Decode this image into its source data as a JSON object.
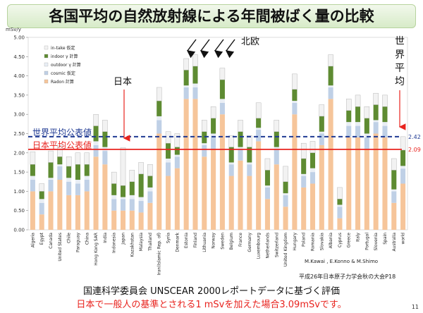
{
  "slide": {
    "title": "各国平均の自然放射線による年間被ばく量の比較",
    "credit": "M.Kawai , E.Konno & M.Shimo",
    "conference": "平成26年日本原子力学会秋の大会P18",
    "footer_line1": "国連科学委員会 UNSCEAR 2000レポートデータに基づく評価",
    "footer_line2": "日本で一般人の基準とされる1 mSvを加えた場合3.09mSvです。",
    "page_number": "11"
  },
  "colors": {
    "radon": "#f6c59a",
    "cosmic": "#bfd0e6",
    "outdoor": "#e9eef5",
    "indoor": "#5e8b32",
    "intake": "#f2f2f2",
    "world_line": "#1f3a93",
    "japan_line": "#e8231e",
    "arrow": "#e8231e"
  },
  "annotations": {
    "japan_label": "日本",
    "world_label": "世界平均",
    "north_europe_label": "北欧",
    "world_line_label": "世界平均公表値",
    "japan_line_label": "日本平均公表値"
  },
  "chart_data": {
    "type": "bar",
    "stacked": true,
    "ylabel": "mSv/y",
    "ylim": [
      0,
      5.0
    ],
    "yticks": [
      "0.00",
      "0.50",
      "1.00",
      "1.50",
      "2.00",
      "2.50",
      "3.00",
      "3.50",
      "4.00",
      "4.50",
      "5.00"
    ],
    "grid": false,
    "legend_position": "top-left",
    "categories": [
      "Algeria",
      "Egypt",
      "Canada",
      "United States",
      "Chile",
      "Paraguay",
      "China",
      "Hong Kong SAR",
      "India",
      "Indonesia",
      "Japan",
      "Kazakhstan",
      "Malaysia",
      "Thailand",
      "Iran(Islamic Rep. of)",
      "Syria",
      "Denmark",
      "Estonia",
      "Finland",
      "Lithuania",
      "Norway",
      "Sweden",
      "Belgium",
      "France",
      "Germany",
      "Luxembourg",
      "Netherlands",
      "Switzerland",
      "United Kingdom",
      "Hungary",
      "Poland",
      "Romania",
      "Slovakia",
      "Albania",
      "Cyprus",
      "Greece",
      "Italy",
      "Portugal",
      "Slovenia",
      "Spain",
      "Australia",
      "world"
    ],
    "series": [
      {
        "name": "Radon 計算",
        "values": [
          1.0,
          0.4,
          1.0,
          1.3,
          0.9,
          0.9,
          1.0,
          1.9,
          1.7,
          0.5,
          0.5,
          0.5,
          0.45,
          0.7,
          2.5,
          1.4,
          1.6,
          3.4,
          3.4,
          1.9,
          2.1,
          3.0,
          1.4,
          1.8,
          1.4,
          2.3,
          0.8,
          1.7,
          0.6,
          3.0,
          1.1,
          1.2,
          2.2,
          3.4,
          0.3,
          2.4,
          2.4,
          2.1,
          2.5,
          2.4,
          0.7,
          1.2
        ]
      },
      {
        "name": "cosmic 仮定",
        "values": [
          0.3,
          0.3,
          0.3,
          0.35,
          0.35,
          0.3,
          0.3,
          0.3,
          0.35,
          0.3,
          0.3,
          0.3,
          0.3,
          0.3,
          0.35,
          0.35,
          0.3,
          0.3,
          0.3,
          0.3,
          0.3,
          0.3,
          0.3,
          0.3,
          0.3,
          0.3,
          0.3,
          0.4,
          0.3,
          0.3,
          0.3,
          0.3,
          0.3,
          0.3,
          0.3,
          0.3,
          0.3,
          0.3,
          0.3,
          0.3,
          0.3,
          0.39
        ]
      },
      {
        "name": "outdoor γ 計算",
        "values": [
          0.1,
          0.1,
          0.05,
          0.05,
          0.1,
          0.1,
          0.1,
          0.1,
          0.1,
          0.1,
          0.05,
          0.1,
          0.1,
          0.1,
          0.1,
          0.1,
          0.05,
          0.05,
          0.1,
          0.05,
          0.1,
          0.1,
          0.05,
          0.05,
          0.05,
          0.05,
          0.05,
          0.05,
          0.05,
          0.05,
          0.05,
          0.1,
          0.05,
          0.05,
          0.05,
          0.1,
          0.1,
          0.1,
          0.05,
          0.1,
          0.05,
          0.07
        ]
      },
      {
        "name": "indoor γ 計算",
        "values": [
          0.3,
          0.2,
          0.4,
          0.2,
          0.3,
          0.4,
          0.3,
          0.4,
          0.4,
          0.3,
          0.3,
          0.35,
          0.6,
          0.3,
          0.4,
          0.4,
          0.2,
          0.4,
          0.45,
          0.3,
          0.4,
          0.5,
          0.4,
          0.4,
          0.4,
          0.25,
          0.4,
          0.4,
          0.3,
          0.3,
          0.4,
          0.4,
          0.4,
          0.5,
          0.15,
          0.3,
          0.4,
          0.4,
          0.4,
          0.4,
          0.5,
          0.41
        ]
      },
      {
        "name": "in-take 仮定",
        "values": [
          0.33,
          0.2,
          0.3,
          0.3,
          0.25,
          0.3,
          0.3,
          0.3,
          0.3,
          0.3,
          0.99,
          0.3,
          0.3,
          0.3,
          0.35,
          0.3,
          0.35,
          0.3,
          0.3,
          0.3,
          0.3,
          0.3,
          0.3,
          0.3,
          0.3,
          0.4,
          0.3,
          0.3,
          0.4,
          0.4,
          0.4,
          0.3,
          0.3,
          0.3,
          0.3,
          0.3,
          0.3,
          0.3,
          0.3,
          0.3,
          0.3,
          0.35
        ]
      }
    ],
    "reference_lines": [
      {
        "name": "世界平均公表値",
        "value": 2.42,
        "label": "2.42"
      },
      {
        "name": "日本平均公表値",
        "value": 2.09,
        "label": "2.09"
      }
    ]
  }
}
